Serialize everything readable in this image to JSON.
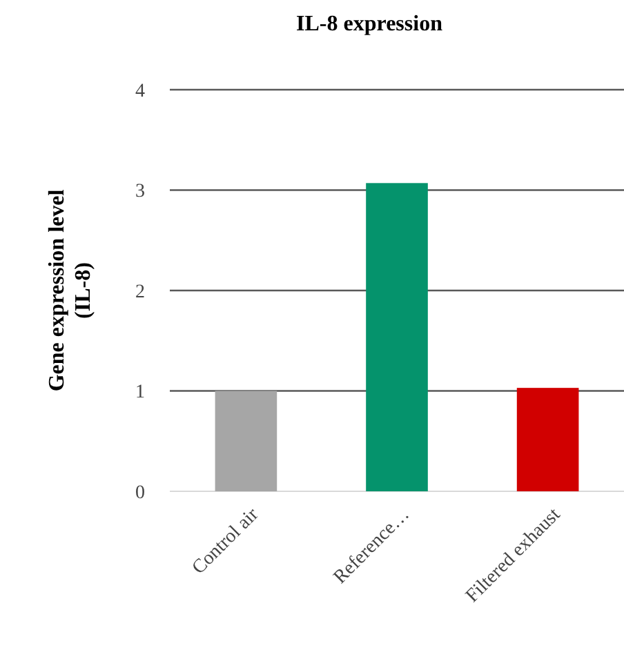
{
  "chart_data": {
    "type": "bar",
    "title": "IL-8 expression",
    "ylabel": "Gene expression level\n(IL-8)",
    "categories": [
      "Control air",
      "Reference…",
      "Filtered exhaust"
    ],
    "values": [
      1.0,
      3.07,
      1.03
    ],
    "colors": [
      "#a6a6a6",
      "#05936c",
      "#d10000"
    ],
    "ylim": [
      0,
      4
    ],
    "yticks": [
      0,
      1,
      2,
      3,
      4
    ],
    "grid": "y"
  }
}
